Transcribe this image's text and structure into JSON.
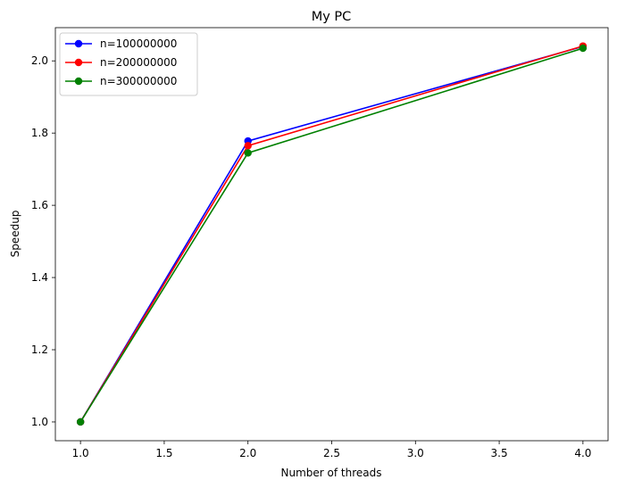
{
  "chart_data": {
    "type": "line",
    "title": "My PC",
    "xlabel": "Number of threads",
    "ylabel": "Speedup",
    "x": [
      1,
      2,
      4
    ],
    "xlim": [
      0.85,
      4.15
    ],
    "ylim": [
      0.948,
      2.092
    ],
    "xticks": [
      1.0,
      1.5,
      2.0,
      2.5,
      3.0,
      3.5,
      4.0
    ],
    "xtick_labels": [
      "1.0",
      "1.5",
      "2.0",
      "2.5",
      "3.0",
      "3.5",
      "4.0"
    ],
    "yticks": [
      1.0,
      1.2,
      1.4,
      1.6,
      1.8,
      2.0
    ],
    "ytick_labels": [
      "1.0",
      "1.2",
      "1.4",
      "1.6",
      "1.8",
      "2.0"
    ],
    "grid": false,
    "legend_position": "upper-left",
    "series": [
      {
        "name": "n=100000000",
        "color": "#0000ff",
        "marker": "circle",
        "values": [
          1.0,
          1.778,
          2.04
        ]
      },
      {
        "name": "n=200000000",
        "color": "#ff0000",
        "marker": "circle",
        "values": [
          1.0,
          1.765,
          2.041
        ]
      },
      {
        "name": "n=300000000",
        "color": "#008000",
        "marker": "circle",
        "values": [
          1.0,
          1.745,
          2.035
        ]
      }
    ]
  }
}
